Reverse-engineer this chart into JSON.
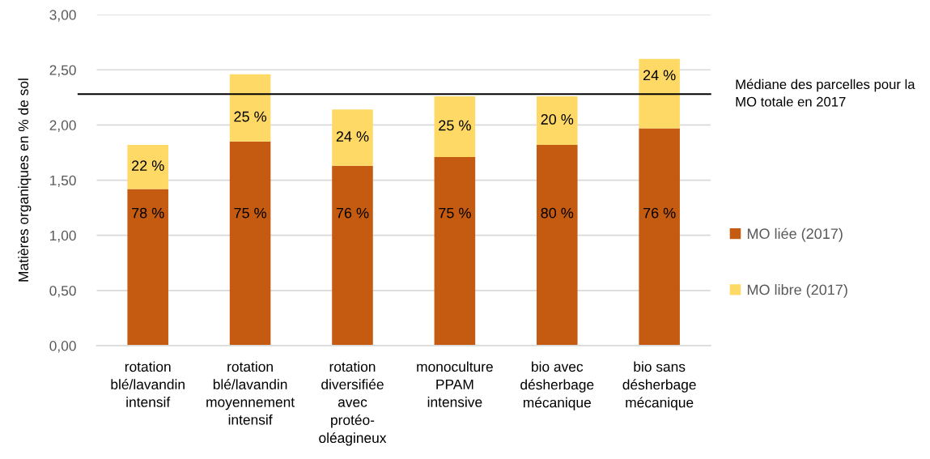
{
  "chart_data": {
    "type": "bar",
    "stacked": true,
    "ylabel": "Matières organiques en % de sol",
    "categories": [
      "rotation\nblé/lavandin\nintensif",
      "rotation\nblé/lavandin\nmoyennement\nintensif",
      "rotation\ndiversifiée\navec\nprotéo-\noléagineux",
      "monoculture\nPPAM\nintensive",
      "bio avec\ndésherbage\nmécanique",
      "bio sans\ndésherbage\nmécanique"
    ],
    "series": [
      {
        "name": "MO liée (2017)",
        "color": "#c55a11",
        "values": [
          1.42,
          1.85,
          1.63,
          1.71,
          1.82,
          1.97
        ]
      },
      {
        "name": "MO libre (2017)",
        "color": "#ffd966",
        "values": [
          0.4,
          0.61,
          0.51,
          0.55,
          0.44,
          0.63
        ]
      }
    ],
    "annotations": [
      "78 %",
      "75 %",
      "76 %",
      "75 %",
      "80 %",
      "76 %",
      "22 %",
      "25 %",
      "24 %",
      "25 %",
      "20 %",
      "24 %"
    ],
    "ylim": [
      0,
      3
    ],
    "yticks": [
      {
        "value": 0,
        "label": "0,00"
      },
      {
        "value": 0.5,
        "label": "0,50"
      },
      {
        "value": 1,
        "label": "1,00"
      },
      {
        "value": 1.5,
        "label": "1,50"
      },
      {
        "value": 2,
        "label": "2,00"
      },
      {
        "value": 2.5,
        "label": "2,50"
      },
      {
        "value": 3,
        "label": "3,00"
      }
    ],
    "ref_lines": [
      {
        "axis": "y",
        "value": 2.28,
        "label": "Médiane des parcelles pour la MO totale en 2017",
        "color": "#000000"
      }
    ],
    "grid": "y",
    "legend": "right"
  }
}
